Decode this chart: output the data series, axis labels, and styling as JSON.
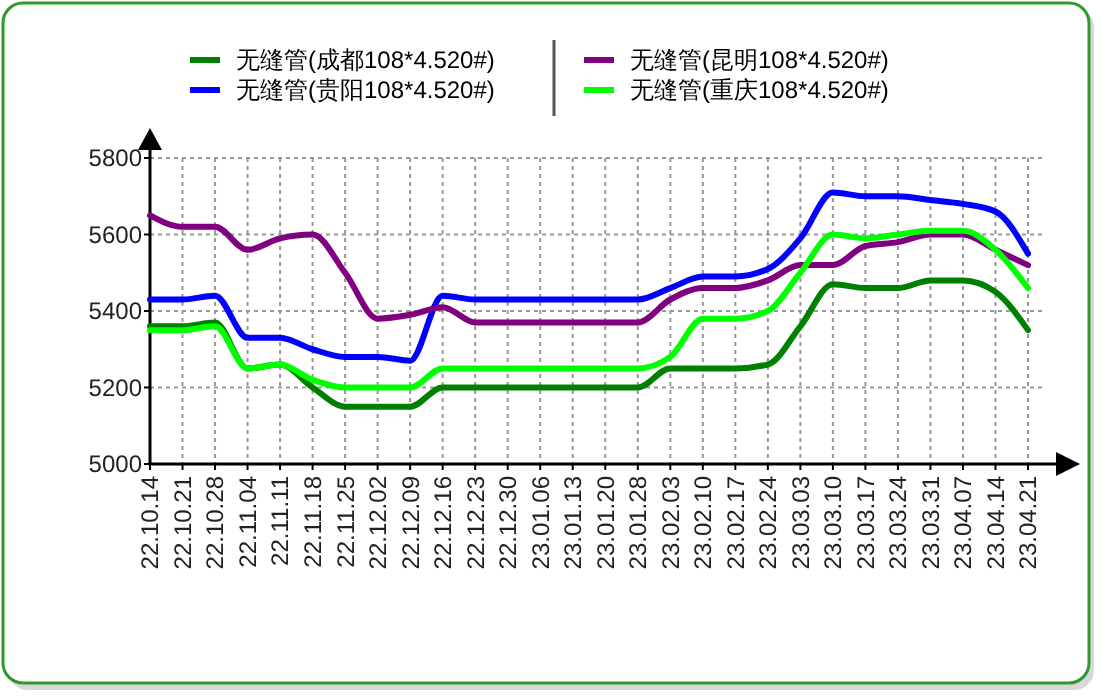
{
  "chart_data": {
    "type": "line",
    "categories": [
      "22.10.14",
      "22.10.21",
      "22.10.28",
      "22.11.04",
      "22.11.11",
      "22.11.18",
      "22.11.25",
      "22.12.02",
      "22.12.09",
      "22.12.16",
      "22.12.23",
      "22.12.30",
      "23.01.06",
      "23.01.13",
      "23.01.20",
      "23.01.28",
      "23.02.03",
      "23.02.10",
      "23.02.17",
      "23.02.24",
      "23.03.03",
      "23.03.10",
      "23.03.17",
      "23.03.24",
      "23.03.31",
      "23.04.07",
      "23.04.14",
      "23.04.21"
    ],
    "ylim": [
      5000,
      5800
    ],
    "yticks": [
      5000,
      5200,
      5400,
      5600,
      5800
    ],
    "grid": true,
    "legend": "top",
    "marker": "none",
    "line_style": "solid",
    "series": [
      {
        "name": "无缝管(成都108*4.520#)",
        "color": "#008000",
        "values": [
          5360,
          5360,
          5370,
          5250,
          5260,
          5200,
          5150,
          5150,
          5150,
          5200,
          5200,
          5200,
          5200,
          5200,
          5200,
          5200,
          5250,
          5250,
          5250,
          5260,
          5360,
          5470,
          5460,
          5460,
          5480,
          5480,
          5450,
          5350
        ]
      },
      {
        "name": "无缝管(贵阳108*4.520#)",
        "color": "#0000ff",
        "values": [
          5430,
          5430,
          5440,
          5330,
          5330,
          5300,
          5280,
          5280,
          5270,
          5440,
          5430,
          5430,
          5430,
          5430,
          5430,
          5430,
          5460,
          5490,
          5490,
          5510,
          5590,
          5710,
          5700,
          5700,
          5690,
          5680,
          5660,
          5550
        ]
      },
      {
        "name": "无缝管(昆明108*4.520#)",
        "color": "#800080",
        "values": [
          5650,
          5620,
          5620,
          5560,
          5590,
          5600,
          5500,
          5380,
          5390,
          5410,
          5370,
          5370,
          5370,
          5370,
          5370,
          5370,
          5430,
          5460,
          5460,
          5480,
          5520,
          5520,
          5570,
          5580,
          5600,
          5600,
          5560,
          5520
        ]
      },
      {
        "name": "无缝管(重庆108*4.520#)",
        "color": "#00ff00",
        "values": [
          5350,
          5350,
          5360,
          5250,
          5260,
          5220,
          5200,
          5200,
          5200,
          5250,
          5250,
          5250,
          5250,
          5250,
          5250,
          5250,
          5280,
          5380,
          5380,
          5400,
          5500,
          5600,
          5590,
          5600,
          5610,
          5610,
          5560,
          5460
        ]
      }
    ]
  }
}
